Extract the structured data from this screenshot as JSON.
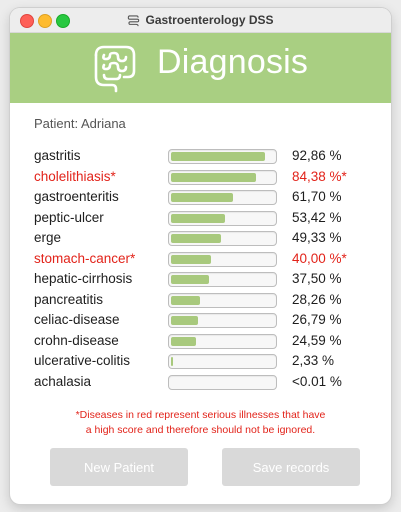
{
  "window": {
    "title": "Gastroenterology DSS",
    "icon": "intestine-icon"
  },
  "header": {
    "title": "Diagnosis",
    "logo": "intestine-icon",
    "background": "#a9cf82"
  },
  "patient": {
    "label": "Patient: Adriana"
  },
  "colors": {
    "serious": "#e2231a",
    "bar_fill": "#a8c97d"
  },
  "diagnoses": [
    {
      "name": "gastritis",
      "score": 0.9286,
      "percent": "92,86 %",
      "serious": false
    },
    {
      "name": "cholelithiasis*",
      "score": 0.8438,
      "percent": "84,38 %*",
      "serious": true
    },
    {
      "name": "gastroenteritis",
      "score": 0.617,
      "percent": "61,70 %",
      "serious": false
    },
    {
      "name": "peptic-ulcer",
      "score": 0.5342,
      "percent": "53,42 %",
      "serious": false
    },
    {
      "name": "erge",
      "score": 0.4933,
      "percent": "49,33 %",
      "serious": false
    },
    {
      "name": "stomach-cancer*",
      "score": 0.4,
      "percent": "40,00 %*",
      "serious": true
    },
    {
      "name": "hepatic-cirrhosis",
      "score": 0.375,
      "percent": "37,50 %",
      "serious": false
    },
    {
      "name": "pancreatitis",
      "score": 0.2826,
      "percent": "28,26 %",
      "serious": false
    },
    {
      "name": "celiac-disease",
      "score": 0.2679,
      "percent": "26,79 %",
      "serious": false
    },
    {
      "name": "crohn-disease",
      "score": 0.2459,
      "percent": "24,59 %",
      "serious": false
    },
    {
      "name": "ulcerative-colitis",
      "score": 0.0233,
      "percent": "2,33 %",
      "serious": false
    },
    {
      "name": "achalasia",
      "score": 0.0,
      "percent": "<0.01 %",
      "serious": false
    }
  ],
  "note": {
    "line1": "*Diseases in red represent serious illnesses that have",
    "line2": "a high score and therefore should not be ignored."
  },
  "buttons": {
    "new_patient": "New Patient",
    "save_records": "Save records"
  }
}
